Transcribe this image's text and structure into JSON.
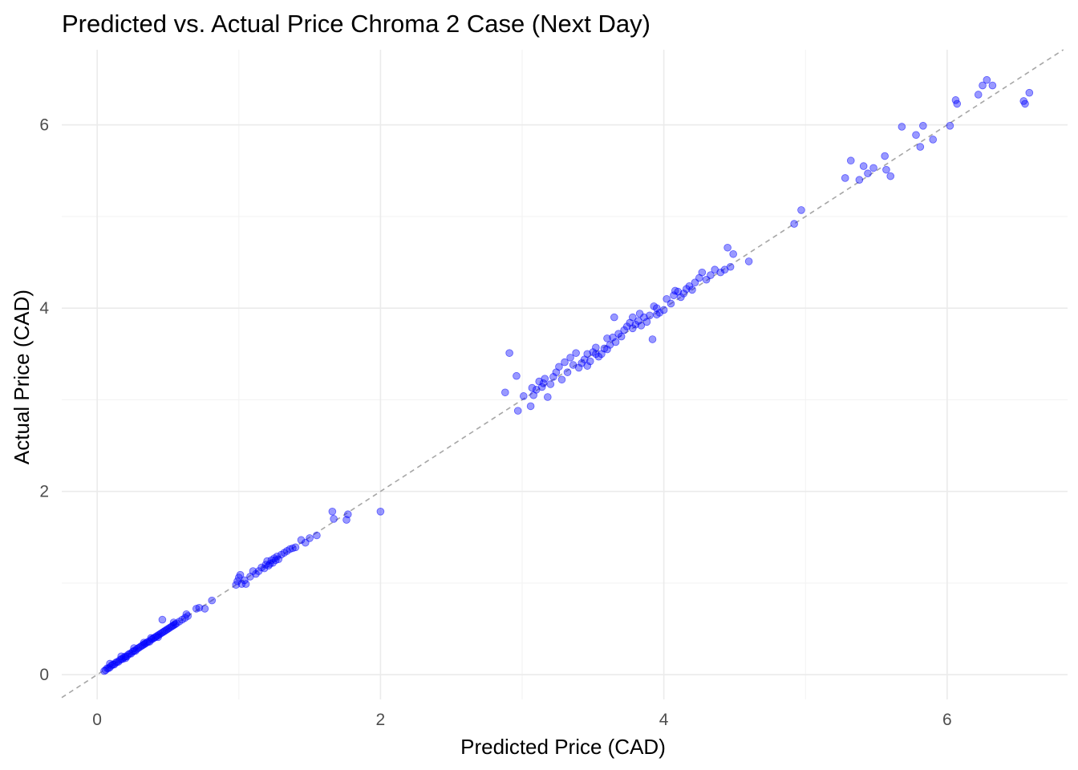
{
  "chart_data": {
    "type": "scatter",
    "title": "Predicted vs. Actual Price Chroma 2 Case (Next Day)",
    "xlabel": "Predicted Price (CAD)",
    "ylabel": "Actual Price (CAD)",
    "xlim": [
      -0.25,
      6.85
    ],
    "ylim": [
      -0.27,
      6.82
    ],
    "x_ticks": [
      0,
      2,
      4,
      6
    ],
    "x_tick_labels": [
      "0",
      "2",
      "4",
      "6"
    ],
    "y_ticks": [
      0,
      2,
      4,
      6
    ],
    "y_tick_labels": [
      "0",
      "2",
      "4",
      "6"
    ],
    "grid": true,
    "legend": "none",
    "point_color": "#0000ff",
    "point_alpha": 0.4,
    "reference_line": {
      "slope": 1,
      "intercept": 0,
      "style": "dashed",
      "color": "#a6a6a6"
    },
    "series": [
      {
        "points": [
          [
            0.05,
            0.04
          ],
          [
            0.06,
            0.05
          ],
          [
            0.07,
            0.07
          ],
          [
            0.08,
            0.07
          ],
          [
            0.09,
            0.08
          ],
          [
            0.1,
            0.1
          ],
          [
            0.11,
            0.11
          ],
          [
            0.12,
            0.11
          ],
          [
            0.13,
            0.13
          ],
          [
            0.14,
            0.14
          ],
          [
            0.15,
            0.14
          ],
          [
            0.16,
            0.16
          ],
          [
            0.17,
            0.17
          ],
          [
            0.18,
            0.17
          ],
          [
            0.19,
            0.19
          ],
          [
            0.2,
            0.2
          ],
          [
            0.21,
            0.2
          ],
          [
            0.22,
            0.22
          ],
          [
            0.23,
            0.23
          ],
          [
            0.24,
            0.23
          ],
          [
            0.25,
            0.25
          ],
          [
            0.26,
            0.26
          ],
          [
            0.27,
            0.26
          ],
          [
            0.28,
            0.28
          ],
          [
            0.29,
            0.29
          ],
          [
            0.3,
            0.3
          ],
          [
            0.31,
            0.31
          ],
          [
            0.32,
            0.32
          ],
          [
            0.33,
            0.33
          ],
          [
            0.34,
            0.34
          ],
          [
            0.35,
            0.35
          ],
          [
            0.36,
            0.36
          ],
          [
            0.37,
            0.36
          ],
          [
            0.38,
            0.38
          ],
          [
            0.39,
            0.39
          ],
          [
            0.4,
            0.4
          ],
          [
            0.41,
            0.41
          ],
          [
            0.42,
            0.42
          ],
          [
            0.43,
            0.43
          ],
          [
            0.44,
            0.44
          ],
          [
            0.45,
            0.45
          ],
          [
            0.46,
            0.46
          ],
          [
            0.47,
            0.47
          ],
          [
            0.48,
            0.48
          ],
          [
            0.49,
            0.49
          ],
          [
            0.5,
            0.5
          ],
          [
            0.51,
            0.51
          ],
          [
            0.52,
            0.52
          ],
          [
            0.53,
            0.53
          ],
          [
            0.54,
            0.54
          ],
          [
            0.55,
            0.55
          ],
          [
            0.56,
            0.56
          ],
          [
            0.58,
            0.58
          ],
          [
            0.6,
            0.6
          ],
          [
            0.62,
            0.62
          ],
          [
            0.64,
            0.64
          ],
          [
            0.7,
            0.72
          ],
          [
            0.72,
            0.73
          ],
          [
            0.76,
            0.72
          ],
          [
            0.81,
            0.81
          ],
          [
            0.09,
            0.12
          ],
          [
            0.17,
            0.2
          ],
          [
            0.26,
            0.29
          ],
          [
            0.33,
            0.35
          ],
          [
            0.38,
            0.4
          ],
          [
            0.43,
            0.41
          ],
          [
            0.46,
            0.6
          ],
          [
            0.54,
            0.57
          ],
          [
            0.63,
            0.66
          ],
          [
            0.2,
            0.18
          ],
          [
            0.98,
            0.98
          ],
          [
            0.99,
            1.02
          ],
          [
            1.0,
            1.06
          ],
          [
            1.01,
            1.09
          ],
          [
            1.02,
            0.99
          ],
          [
            1.04,
            1.03
          ],
          [
            1.05,
            0.99
          ],
          [
            1.08,
            1.07
          ],
          [
            1.1,
            1.13
          ],
          [
            1.12,
            1.1
          ],
          [
            1.14,
            1.13
          ],
          [
            1.16,
            1.17
          ],
          [
            1.18,
            1.16
          ],
          [
            1.19,
            1.2
          ],
          [
            1.2,
            1.24
          ],
          [
            1.21,
            1.19
          ],
          [
            1.22,
            1.21
          ],
          [
            1.23,
            1.25
          ],
          [
            1.24,
            1.22
          ],
          [
            1.25,
            1.27
          ],
          [
            1.26,
            1.25
          ],
          [
            1.27,
            1.29
          ],
          [
            1.28,
            1.26
          ],
          [
            1.3,
            1.31
          ],
          [
            1.32,
            1.33
          ],
          [
            1.34,
            1.35
          ],
          [
            1.36,
            1.37
          ],
          [
            1.38,
            1.38
          ],
          [
            1.4,
            1.39
          ],
          [
            1.44,
            1.47
          ],
          [
            1.47,
            1.44
          ],
          [
            1.5,
            1.49
          ],
          [
            1.55,
            1.52
          ],
          [
            1.66,
            1.78
          ],
          [
            1.67,
            1.7
          ],
          [
            1.76,
            1.69
          ],
          [
            1.77,
            1.75
          ],
          [
            2.0,
            1.78
          ],
          [
            2.88,
            3.08
          ],
          [
            2.91,
            3.51
          ],
          [
            2.96,
            3.26
          ],
          [
            2.97,
            2.88
          ],
          [
            3.01,
            3.04
          ],
          [
            3.06,
            2.93
          ],
          [
            3.08,
            3.05
          ],
          [
            3.1,
            3.11
          ],
          [
            3.12,
            3.2
          ],
          [
            3.14,
            3.14
          ],
          [
            3.16,
            3.23
          ],
          [
            3.18,
            3.03
          ],
          [
            3.2,
            3.17
          ],
          [
            3.22,
            3.25
          ],
          [
            3.24,
            3.3
          ],
          [
            3.26,
            3.36
          ],
          [
            3.28,
            3.22
          ],
          [
            3.3,
            3.41
          ],
          [
            3.32,
            3.3
          ],
          [
            3.34,
            3.46
          ],
          [
            3.36,
            3.38
          ],
          [
            3.38,
            3.51
          ],
          [
            3.4,
            3.35
          ],
          [
            3.42,
            3.4
          ],
          [
            3.44,
            3.44
          ],
          [
            3.46,
            3.37
          ],
          [
            3.48,
            3.42
          ],
          [
            3.5,
            3.52
          ],
          [
            3.52,
            3.5
          ],
          [
            3.54,
            3.47
          ],
          [
            3.56,
            3.5
          ],
          [
            3.58,
            3.56
          ],
          [
            3.6,
            3.55
          ],
          [
            3.62,
            3.6
          ],
          [
            3.64,
            3.68
          ],
          [
            3.66,
            3.63
          ],
          [
            3.68,
            3.72
          ],
          [
            3.7,
            3.69
          ],
          [
            3.72,
            3.76
          ],
          [
            3.74,
            3.8
          ],
          [
            3.76,
            3.84
          ],
          [
            3.78,
            3.78
          ],
          [
            3.8,
            3.82
          ],
          [
            3.82,
            3.86
          ],
          [
            3.84,
            3.81
          ],
          [
            3.86,
            3.9
          ],
          [
            3.88,
            3.85
          ],
          [
            3.9,
            3.92
          ],
          [
            3.92,
            3.66
          ],
          [
            3.93,
            4.02
          ],
          [
            3.95,
            3.93
          ],
          [
            3.97,
            3.95
          ],
          [
            4.0,
            3.98
          ],
          [
            4.02,
            4.1
          ],
          [
            4.05,
            4.05
          ],
          [
            4.07,
            4.14
          ],
          [
            4.1,
            4.18
          ],
          [
            4.12,
            4.12
          ],
          [
            4.14,
            4.16
          ],
          [
            4.16,
            4.21
          ],
          [
            4.18,
            4.24
          ],
          [
            4.2,
            4.2
          ],
          [
            4.22,
            4.28
          ],
          [
            4.25,
            4.33
          ],
          [
            4.27,
            4.39
          ],
          [
            4.3,
            4.31
          ],
          [
            4.33,
            4.36
          ],
          [
            4.36,
            4.42
          ],
          [
            4.4,
            4.39
          ],
          [
            4.43,
            4.42
          ],
          [
            4.45,
            4.66
          ],
          [
            4.47,
            4.45
          ],
          [
            4.49,
            4.59
          ],
          [
            4.6,
            4.51
          ],
          [
            3.07,
            3.13
          ],
          [
            3.15,
            3.18
          ],
          [
            3.46,
            3.5
          ],
          [
            3.52,
            3.57
          ],
          [
            3.6,
            3.67
          ],
          [
            3.65,
            3.9
          ],
          [
            3.78,
            3.9
          ],
          [
            3.83,
            3.94
          ],
          [
            3.95,
            4.0
          ],
          [
            4.08,
            4.19
          ],
          [
            4.92,
            4.92
          ],
          [
            4.97,
            5.07
          ],
          [
            5.28,
            5.42
          ],
          [
            5.32,
            5.61
          ],
          [
            5.38,
            5.4
          ],
          [
            5.41,
            5.55
          ],
          [
            5.44,
            5.47
          ],
          [
            5.48,
            5.53
          ],
          [
            5.56,
            5.66
          ],
          [
            5.57,
            5.51
          ],
          [
            5.6,
            5.44
          ],
          [
            5.68,
            5.98
          ],
          [
            5.78,
            5.89
          ],
          [
            5.81,
            5.76
          ],
          [
            5.83,
            5.99
          ],
          [
            5.9,
            5.84
          ],
          [
            6.02,
            5.99
          ],
          [
            6.06,
            6.27
          ],
          [
            6.07,
            6.23
          ],
          [
            6.22,
            6.33
          ],
          [
            6.25,
            6.43
          ],
          [
            6.28,
            6.49
          ],
          [
            6.32,
            6.43
          ],
          [
            6.54,
            6.26
          ],
          [
            6.55,
            6.23
          ],
          [
            6.58,
            6.35
          ]
        ]
      }
    ]
  }
}
